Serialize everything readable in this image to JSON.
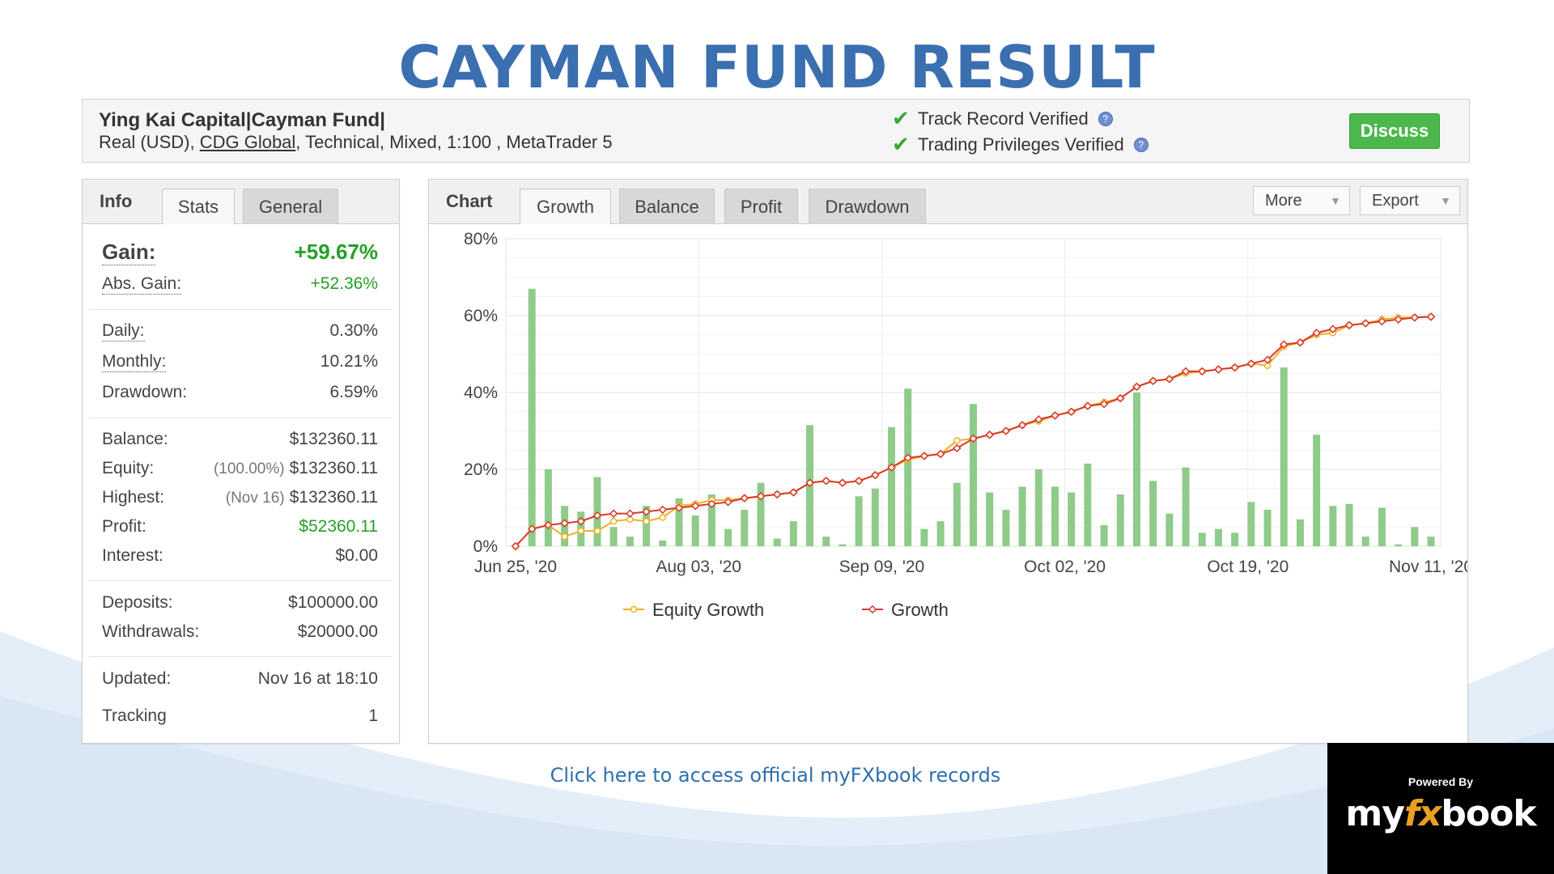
{
  "page_title": "CAYMAN FUND RESULT",
  "account": {
    "name": "Ying Kai Capital|Cayman Fund|",
    "details_prefix": "Real (USD),",
    "broker": "CDG Global",
    "details_suffix": ", Technical, Mixed, 1:100 , MetaTrader 5"
  },
  "verification": [
    {
      "label": "Track Record Verified",
      "help_icon": "?"
    },
    {
      "label": "Trading Privileges Verified",
      "help_icon": "?"
    }
  ],
  "discuss_label": "Discuss",
  "info_panel": {
    "tab_label": "Info",
    "tabs": [
      "Stats",
      "General"
    ],
    "gain": {
      "label": "Gain:",
      "value": "+59.67%"
    },
    "abs_gain": {
      "label": "Abs. Gain:",
      "value": "+52.36%"
    },
    "daily": {
      "label": "Daily:",
      "value": "0.30%"
    },
    "monthly": {
      "label": "Monthly:",
      "value": "10.21%"
    },
    "drawdown": {
      "label": "Drawdown:",
      "value": "6.59%"
    },
    "balance": {
      "label": "Balance:",
      "value": "$132360.11"
    },
    "equity": {
      "label": "Equity:",
      "sub": "(100.00%)",
      "value": "$132360.11"
    },
    "highest": {
      "label": "Highest:",
      "sub": "(Nov 16)",
      "value": "$132360.11"
    },
    "profit": {
      "label": "Profit:",
      "value": "$52360.11"
    },
    "interest": {
      "label": "Interest:",
      "value": "$0.00"
    },
    "deposits": {
      "label": "Deposits:",
      "value": "$100000.00"
    },
    "withdrawals": {
      "label": "Withdrawals:",
      "value": "$20000.00"
    },
    "updated": {
      "label": "Updated:",
      "value": "Nov 16 at 18:10"
    },
    "tracking": {
      "label": "Tracking",
      "value": "1"
    }
  },
  "chart_panel": {
    "tab_label": "Chart",
    "tabs": [
      "Growth",
      "Balance",
      "Profit",
      "Drawdown"
    ],
    "more_label": "More",
    "export_label": "Export"
  },
  "chart_data": {
    "type": "bar+line",
    "title": "",
    "xlabel": "",
    "ylabel": "",
    "ylim": [
      0,
      80
    ],
    "y_ticks": [
      "0%",
      "20%",
      "40%",
      "60%",
      "80%"
    ],
    "x_ticks": [
      "Jun 25, '20",
      "Aug 03, '20",
      "Sep 09, '20",
      "Oct 02, '20",
      "Oct 19, '20",
      "Nov 11, '20"
    ],
    "grid": true,
    "legend_position": "bottom",
    "bars": {
      "color": "#8fcb8a",
      "values": [
        0,
        67,
        20,
        10.5,
        9,
        18,
        5,
        2.5,
        10.5,
        1.5,
        12.5,
        8,
        13.5,
        4.5,
        9.5,
        16.5,
        2,
        6.5,
        31.5,
        2.5,
        0.5,
        13,
        15,
        31,
        41,
        4.5,
        6.5,
        16.5,
        37,
        14,
        9.5,
        15.5,
        20,
        15.5,
        14,
        21.5,
        5.5,
        13.5,
        40,
        17,
        8.5,
        20.5,
        3.5,
        4.5,
        3.5,
        11.5,
        9.5,
        46.5,
        7,
        29,
        10.5,
        11,
        2.5,
        10,
        0.5,
        5,
        2.5
      ]
    },
    "series": [
      {
        "name": "Equity Growth",
        "color": "#f0b020",
        "values": [
          0,
          4.5,
          5.5,
          2.5,
          4,
          4,
          6.5,
          7,
          6.5,
          7.5,
          10.5,
          11,
          12,
          12,
          12.5,
          13,
          13.5,
          14,
          16.5,
          17,
          16.5,
          17,
          18.5,
          20.5,
          22.5,
          23.5,
          24,
          27.5,
          28,
          29,
          30,
          31.5,
          32.5,
          34,
          35,
          36.5,
          37.5,
          38.5,
          41.5,
          43,
          43.5,
          45,
          45.5,
          46,
          46.5,
          47.5,
          47,
          52,
          53,
          55,
          55.5,
          57.5,
          58,
          59,
          59.5,
          59.5,
          59.7
        ]
      },
      {
        "name": "Growth",
        "color": "#d83a2a",
        "values": [
          0,
          4.5,
          5.5,
          6,
          6.5,
          8,
          8.5,
          8.5,
          9,
          9.5,
          10,
          10.5,
          11,
          11.5,
          12.5,
          13,
          13.5,
          14,
          16.5,
          17,
          16.5,
          17,
          18.5,
          20.5,
          23,
          23.5,
          24,
          25.5,
          28,
          29,
          30,
          31.5,
          33,
          34,
          35,
          36.5,
          37,
          38.5,
          41.5,
          43,
          43.5,
          45.5,
          45.5,
          46,
          46.5,
          47.5,
          48.5,
          52.5,
          53,
          55.5,
          56.5,
          57.5,
          58,
          58.5,
          59,
          59.5,
          59.7
        ]
      }
    ]
  },
  "records_link": "Click here to access official myFXbook records",
  "powered_by": {
    "label": "Powered By",
    "logo_prefix": "my",
    "logo_fx": "fx",
    "logo_suffix": "book"
  }
}
